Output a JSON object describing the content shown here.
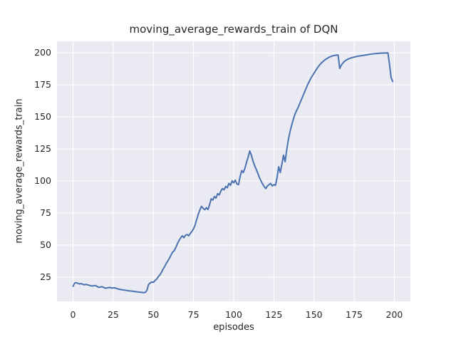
{
  "chart_data": {
    "type": "line",
    "title": "moving_average_rewards_train of DQN",
    "xlabel": "episodes",
    "ylabel": "moving_average_rewards_train",
    "xlim": [
      -10,
      210
    ],
    "ylim": [
      6,
      209
    ],
    "x_ticks": [
      0,
      25,
      50,
      75,
      100,
      125,
      150,
      175,
      200
    ],
    "y_ticks": [
      25,
      50,
      75,
      100,
      125,
      150,
      175,
      200
    ],
    "grid": true,
    "legend": "none",
    "style": {
      "axes_background": "#eaeaf2",
      "figure_background": "#ffffff",
      "grid_color": "#ffffff",
      "line_color": "#4c72b0",
      "text_color": "#262626",
      "line_width": 2
    },
    "series": [
      {
        "name": "moving_average_rewards_train",
        "points": [
          [
            0,
            17.8
          ],
          [
            1,
            20.3
          ],
          [
            2,
            20.6
          ],
          [
            3,
            20.1
          ],
          [
            4,
            19.6
          ],
          [
            5,
            19.9
          ],
          [
            6,
            19.4
          ],
          [
            7,
            18.9
          ],
          [
            8,
            19.3
          ],
          [
            9,
            18.9
          ],
          [
            10,
            18.6
          ],
          [
            11,
            18.2
          ],
          [
            12,
            18.0
          ],
          [
            13,
            18.3
          ],
          [
            14,
            18.4
          ],
          [
            15,
            17.7
          ],
          [
            16,
            17.0
          ],
          [
            17,
            17.2
          ],
          [
            18,
            17.5
          ],
          [
            19,
            16.9
          ],
          [
            20,
            16.3
          ],
          [
            21,
            16.5
          ],
          [
            22,
            16.7
          ],
          [
            23,
            16.9
          ],
          [
            24,
            16.4
          ],
          [
            25,
            16.5
          ],
          [
            26,
            16.6
          ],
          [
            27,
            16.1
          ],
          [
            28,
            15.7
          ],
          [
            29,
            15.4
          ],
          [
            30,
            15.2
          ],
          [
            31,
            15.0
          ],
          [
            32,
            14.8
          ],
          [
            33,
            14.6
          ],
          [
            34,
            14.4
          ],
          [
            35,
            14.2
          ],
          [
            36,
            14.1
          ],
          [
            37,
            14.0
          ],
          [
            38,
            13.8
          ],
          [
            39,
            13.6
          ],
          [
            40,
            13.4
          ],
          [
            41,
            13.3
          ],
          [
            42,
            13.1
          ],
          [
            43,
            13.0
          ],
          [
            44,
            12.8
          ],
          [
            45,
            13.0
          ],
          [
            46,
            14.8
          ],
          [
            47,
            19.2
          ],
          [
            48,
            20.3
          ],
          [
            49,
            21.2
          ],
          [
            50,
            20.8
          ],
          [
            51,
            22.3
          ],
          [
            52,
            23.3
          ],
          [
            53,
            25.2
          ],
          [
            54,
            26.6
          ],
          [
            55,
            28.6
          ],
          [
            56,
            31.1
          ],
          [
            57,
            33.2
          ],
          [
            58,
            35.6
          ],
          [
            59,
            37.6
          ],
          [
            60,
            39.7
          ],
          [
            61,
            42.2
          ],
          [
            62,
            44.6
          ],
          [
            63,
            45.6
          ],
          [
            64,
            48.2
          ],
          [
            65,
            51.2
          ],
          [
            66,
            53.6
          ],
          [
            67,
            55.6
          ],
          [
            68,
            57.2
          ],
          [
            69,
            55.7
          ],
          [
            70,
            57.6
          ],
          [
            71,
            58.2
          ],
          [
            72,
            57.2
          ],
          [
            73,
            59.1
          ],
          [
            74,
            60.6
          ],
          [
            75,
            62.7
          ],
          [
            76,
            65.7
          ],
          [
            77,
            70.1
          ],
          [
            78,
            74.2
          ],
          [
            79,
            77.6
          ],
          [
            80,
            80.2
          ],
          [
            81,
            78.6
          ],
          [
            82,
            77.6
          ],
          [
            83,
            79.1
          ],
          [
            84,
            77.7
          ],
          [
            85,
            81.6
          ],
          [
            86,
            86.1
          ],
          [
            87,
            85.1
          ],
          [
            88,
            87.9
          ],
          [
            89,
            86.6
          ],
          [
            90,
            90.1
          ],
          [
            91,
            89.1
          ],
          [
            92,
            92.1
          ],
          [
            93,
            94.1
          ],
          [
            94,
            93.1
          ],
          [
            95,
            95.7
          ],
          [
            96,
            94.7
          ],
          [
            97,
            98.1
          ],
          [
            98,
            96.6
          ],
          [
            99,
            100.1
          ],
          [
            100,
            98.6
          ],
          [
            101,
            100.6
          ],
          [
            102,
            97.6
          ],
          [
            103,
            97.1
          ],
          [
            104,
            103.6
          ],
          [
            105,
            108.1
          ],
          [
            106,
            106.6
          ],
          [
            107,
            110.1
          ],
          [
            108,
            114.6
          ],
          [
            109,
            118.6
          ],
          [
            110,
            123.4
          ],
          [
            111,
            120.1
          ],
          [
            112,
            115.6
          ],
          [
            113,
            112.1
          ],
          [
            114,
            109.1
          ],
          [
            115,
            106.1
          ],
          [
            116,
            102.6
          ],
          [
            117,
            100.1
          ],
          [
            118,
            97.6
          ],
          [
            119,
            95.6
          ],
          [
            120,
            94.1
          ],
          [
            121,
            96.1
          ],
          [
            122,
            97.1
          ],
          [
            123,
            98.1
          ],
          [
            124,
            96.1
          ],
          [
            125,
            97.1
          ],
          [
            126,
            96.6
          ],
          [
            127,
            102.6
          ],
          [
            128,
            111.1
          ],
          [
            129,
            106.6
          ],
          [
            130,
            113.1
          ],
          [
            131,
            120.1
          ],
          [
            132,
            115.1
          ],
          [
            133,
            124.1
          ],
          [
            134,
            132.1
          ],
          [
            135,
            138.1
          ],
          [
            136,
            143.1
          ],
          [
            137,
            147.6
          ],
          [
            138,
            151.6
          ],
          [
            139,
            154.6
          ],
          [
            140,
            157.1
          ],
          [
            141,
            160.1
          ],
          [
            142,
            163.1
          ],
          [
            143,
            166.1
          ],
          [
            144,
            169.1
          ],
          [
            145,
            172.1
          ],
          [
            146,
            175.1
          ],
          [
            147,
            177.6
          ],
          [
            148,
            180.1
          ],
          [
            149,
            182.1
          ],
          [
            150,
            184.1
          ],
          [
            151,
            186.1
          ],
          [
            152,
            188.1
          ],
          [
            153,
            189.8
          ],
          [
            154,
            191.3
          ],
          [
            155,
            192.6
          ],
          [
            156,
            193.7
          ],
          [
            157,
            194.7
          ],
          [
            158,
            195.5
          ],
          [
            159,
            196.3
          ],
          [
            160,
            196.9
          ],
          [
            161,
            197.4
          ],
          [
            162,
            197.8
          ],
          [
            163,
            198.0
          ],
          [
            164,
            198.2
          ],
          [
            165,
            198.3
          ],
          [
            166,
            187.8
          ],
          [
            167,
            190.4
          ],
          [
            168,
            192.1
          ],
          [
            169,
            193.4
          ],
          [
            170,
            194.3
          ],
          [
            171,
            195.0
          ],
          [
            172,
            195.6
          ],
          [
            173,
            196.0
          ],
          [
            174,
            196.4
          ],
          [
            175,
            196.7
          ],
          [
            176,
            197.0
          ],
          [
            177,
            197.3
          ],
          [
            178,
            197.5
          ],
          [
            179,
            197.7
          ],
          [
            180,
            197.9
          ],
          [
            181,
            198.1
          ],
          [
            182,
            198.3
          ],
          [
            183,
            198.5
          ],
          [
            184,
            198.7
          ],
          [
            185,
            198.9
          ],
          [
            186,
            199.1
          ],
          [
            187,
            199.3
          ],
          [
            188,
            199.4
          ],
          [
            189,
            199.5
          ],
          [
            190,
            199.6
          ],
          [
            191,
            199.7
          ],
          [
            192,
            199.8
          ],
          [
            193,
            199.8
          ],
          [
            194,
            199.9
          ],
          [
            195,
            199.9
          ],
          [
            196,
            200.0
          ],
          [
            197,
            191.0
          ],
          [
            198,
            180.5
          ],
          [
            199,
            177.7
          ]
        ]
      }
    ]
  }
}
